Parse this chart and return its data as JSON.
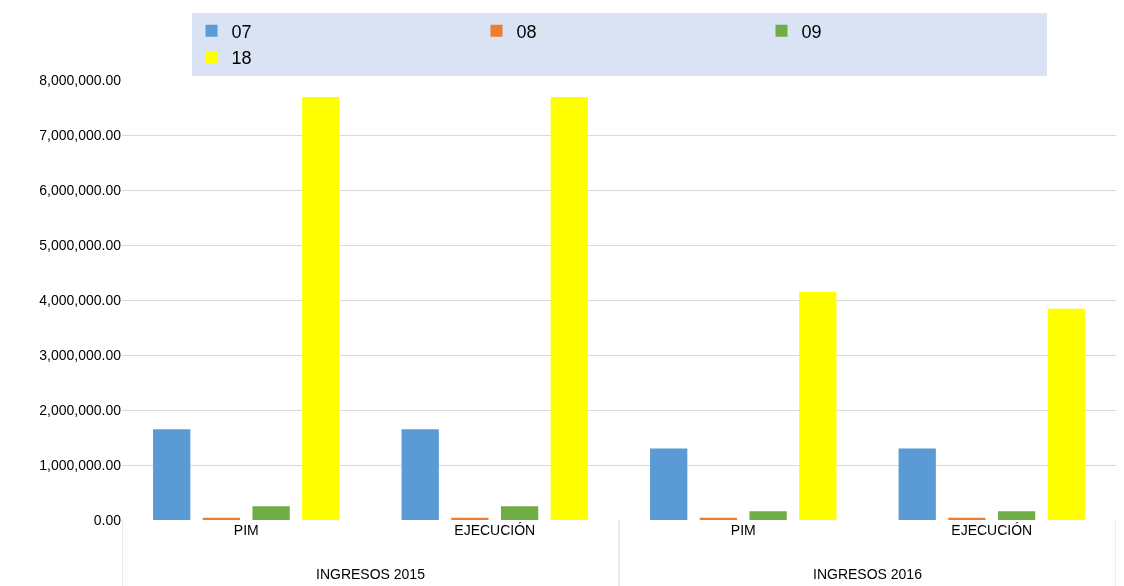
{
  "chart_data": {
    "type": "bar",
    "categories": [
      "PIM",
      "EJECUCIÓN",
      "PIM",
      "EJECUCIÓN"
    ],
    "series": [
      {
        "name": "07",
        "color": "#5b9bd5",
        "values": [
          1650000,
          1650000,
          1300000,
          1300000
        ]
      },
      {
        "name": "08",
        "color": "#ed7d31",
        "values": [
          40000,
          40000,
          40000,
          40000
        ]
      },
      {
        "name": "09",
        "color": "#70ad47",
        "values": [
          250000,
          250000,
          160000,
          160000
        ]
      },
      {
        "name": "18",
        "color": "#ffff00",
        "values": [
          7690000,
          7690000,
          4150000,
          3840000
        ]
      }
    ],
    "ylim": [
      0,
      8000000
    ],
    "yticks": [
      {
        "value": 0,
        "label": "0.00"
      },
      {
        "value": 1000000,
        "label": "1,000,000.00"
      },
      {
        "value": 2000000,
        "label": "2,000,000.00"
      },
      {
        "value": 3000000,
        "label": "3,000,000.00"
      },
      {
        "value": 4000000,
        "label": "4,000,000.00"
      },
      {
        "value": 5000000,
        "label": "5,000,000.00"
      },
      {
        "value": 6000000,
        "label": "6,000,000.00"
      },
      {
        "value": 7000000,
        "label": "7,000,000.00"
      },
      {
        "value": 8000000,
        "label": "8,000,000.00"
      }
    ],
    "grid": "y",
    "legend": "top",
    "annotations": [
      "INGRESOS 2015",
      "INGRESOS 2016"
    ]
  }
}
